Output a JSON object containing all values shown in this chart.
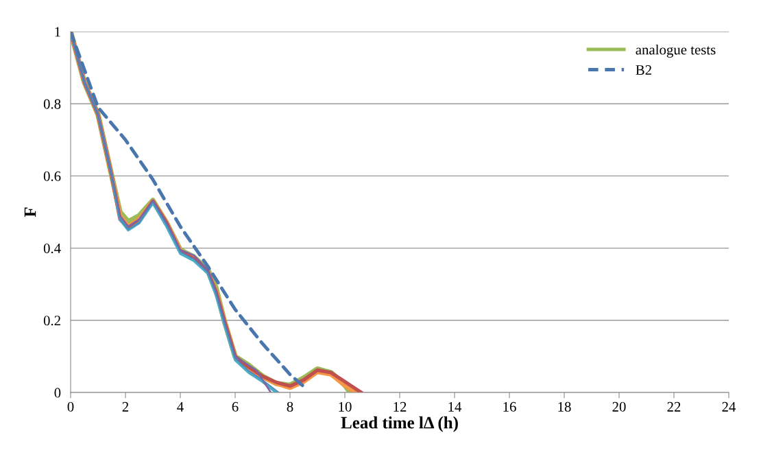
{
  "chart_data": {
    "type": "line",
    "xlabel": "Lead time lΔ (h)",
    "ylabel": "F",
    "xlim": [
      0,
      24
    ],
    "xticks": [
      0,
      2,
      4,
      6,
      8,
      10,
      12,
      14,
      16,
      18,
      20,
      22,
      24
    ],
    "ylim": [
      0,
      1
    ],
    "yticks": [
      0,
      0.2,
      0.4,
      0.6,
      0.8,
      1
    ],
    "grid": "y",
    "legend": "top right",
    "marker": "none",
    "series": [
      {
        "name": "analogue tests",
        "color": "#9bbb59",
        "x": [
          0,
          0.5,
          1,
          1.5,
          1.8,
          2.1,
          2.5,
          3,
          3.5,
          4,
          4.5,
          5,
          5.3,
          5.6,
          6,
          6.5,
          7,
          7.5,
          8,
          8.5,
          9,
          9.5,
          10,
          10.2
        ],
        "values": [
          1,
          0.86,
          0.77,
          0.6,
          0.5,
          0.473,
          0.49,
          0.532,
          0.47,
          0.395,
          0.375,
          0.34,
          0.29,
          0.2,
          0.1,
          0.075,
          0.045,
          0.025,
          0.02,
          0.04,
          0.065,
          0.055,
          0.02,
          0
        ]
      },
      {
        "color": "#f79646",
        "x": [
          0,
          0.5,
          1,
          1.5,
          1.8,
          2.1,
          2.5,
          3,
          3.5,
          4,
          4.5,
          5,
          5.3,
          5.6,
          6,
          6.5,
          7,
          7.5,
          8,
          8.5,
          9,
          9.5,
          10,
          10.4
        ],
        "values": [
          1,
          0.86,
          0.77,
          0.6,
          0.49,
          0.46,
          0.48,
          0.53,
          0.47,
          0.393,
          0.37,
          0.335,
          0.28,
          0.2,
          0.099,
          0.065,
          0.042,
          0.025,
          0.013,
          0.03,
          0.057,
          0.05,
          0.02,
          0
        ]
      },
      {
        "color": "#c0504d",
        "x": [
          0,
          0.5,
          1,
          1.5,
          1.8,
          2.1,
          2.5,
          3,
          3.5,
          4,
          4.5,
          5,
          5.3,
          5.6,
          6,
          6.5,
          7,
          7.5,
          8,
          8.5,
          9,
          9.5,
          10,
          10.6
        ],
        "values": [
          1,
          0.86,
          0.77,
          0.6,
          0.48,
          0.455,
          0.475,
          0.53,
          0.47,
          0.39,
          0.37,
          0.335,
          0.28,
          0.2,
          0.1,
          0.07,
          0.045,
          0.028,
          0.018,
          0.035,
          0.062,
          0.055,
          0.03,
          0
        ]
      },
      {
        "color": "#4bacc6",
        "x": [
          0,
          0.5,
          1,
          1.5,
          1.8,
          2.1,
          2.5,
          3,
          3.5,
          4,
          4.5,
          5,
          5.3,
          5.6,
          6,
          6.5,
          7,
          7.5
        ],
        "values": [
          1,
          0.86,
          0.77,
          0.6,
          0.48,
          0.45,
          0.47,
          0.525,
          0.46,
          0.385,
          0.365,
          0.33,
          0.27,
          0.19,
          0.09,
          0.055,
          0.03,
          0
        ]
      },
      {
        "color": "#8064a2",
        "x": [
          0,
          0.5,
          1,
          1.5,
          1.8,
          2.1,
          2.5,
          3,
          3.5,
          4,
          4.5,
          5,
          5.3,
          5.6,
          6,
          6.5,
          6.8,
          7,
          7.3
        ],
        "values": [
          1,
          0.86,
          0.77,
          0.6,
          0.49,
          0.46,
          0.48,
          0.532,
          0.47,
          0.395,
          0.38,
          0.34,
          0.28,
          0.2,
          0.1,
          0.075,
          0.06,
          0.035,
          0
        ]
      },
      {
        "color": "#4f81bd",
        "x": [
          0,
          0.5,
          1,
          1.5,
          1.8,
          2.1,
          2.5,
          3,
          3.5,
          4,
          4.5,
          5,
          5.3,
          5.6,
          6,
          6.5,
          7,
          7.6
        ],
        "values": [
          1,
          0.86,
          0.77,
          0.6,
          0.48,
          0.452,
          0.47,
          0.528,
          0.465,
          0.39,
          0.37,
          0.333,
          0.275,
          0.195,
          0.095,
          0.06,
          0.035,
          0
        ]
      },
      {
        "name": "B2",
        "color": "#4a76ae",
        "line_style": "dashed",
        "x": [
          0,
          1,
          2,
          3,
          4,
          5,
          6,
          7,
          8,
          8.6
        ],
        "values": [
          1,
          0.79,
          0.7,
          0.59,
          0.46,
          0.35,
          0.23,
          0.135,
          0.05,
          0.01
        ]
      }
    ]
  }
}
